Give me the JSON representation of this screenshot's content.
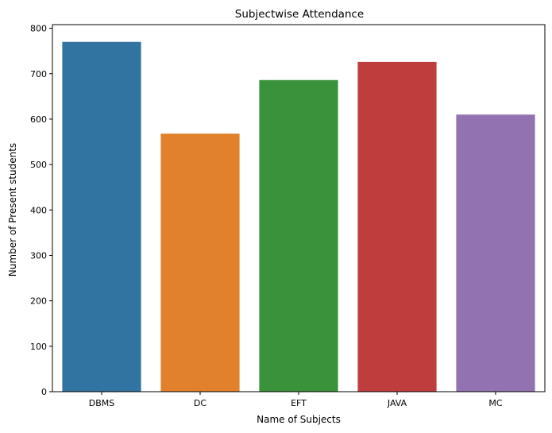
{
  "chart_data": {
    "type": "bar",
    "title": "Subjectwise Attendance",
    "xlabel": "Name of Subjects",
    "ylabel": "Number of Present students",
    "categories": [
      "DBMS",
      "DC",
      "EFT",
      "JAVA",
      "MC"
    ],
    "values": [
      770,
      568,
      686,
      726,
      610
    ],
    "colors": [
      "#3274a1",
      "#e1812c",
      "#3a923a",
      "#c03d3e",
      "#9372b2"
    ],
    "ylim": [
      0,
      808
    ],
    "yticks": [
      0,
      100,
      200,
      300,
      400,
      500,
      600,
      700,
      800
    ],
    "grid": false,
    "legend": "none"
  }
}
